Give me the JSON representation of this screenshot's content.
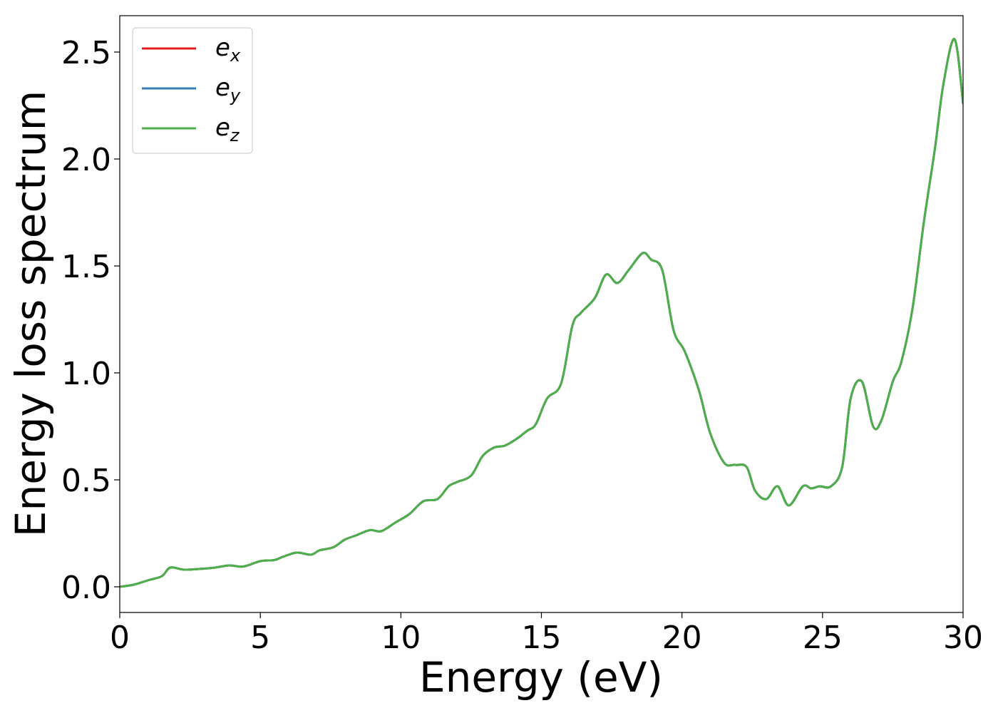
{
  "chart_data": {
    "type": "line",
    "title": "",
    "xlabel": "Energy (eV)",
    "ylabel": "Energy loss spectrum",
    "xlim": [
      0,
      30
    ],
    "ylim": [
      -0.12,
      2.67
    ],
    "xticks": [
      0,
      5,
      10,
      15,
      20,
      25,
      30
    ],
    "xtick_labels": [
      "0",
      "5",
      "10",
      "15",
      "20",
      "25",
      "30"
    ],
    "yticks": [
      0.0,
      0.5,
      1.0,
      1.5,
      2.0,
      2.5
    ],
    "ytick_labels": [
      "0.0",
      "0.5",
      "1.0",
      "1.5",
      "2.0",
      "2.5"
    ],
    "grid": false,
    "legend_position": "upper-left",
    "x": [
      0,
      0.5,
      1.0,
      1.5,
      1.8,
      2.3,
      3.0,
      3.4,
      3.9,
      4.4,
      5.0,
      5.5,
      5.8,
      6.3,
      6.8,
      7.1,
      7.6,
      8.0,
      8.4,
      8.9,
      9.3,
      9.8,
      10.3,
      10.8,
      11.3,
      11.7,
      12.0,
      12.5,
      12.9,
      13.3,
      13.7,
      14.1,
      14.5,
      14.8,
      15.2,
      15.7,
      16.1,
      16.4,
      16.9,
      17.3,
      17.7,
      18.1,
      18.6,
      18.9,
      19.3,
      19.7,
      20.1,
      20.6,
      21.0,
      21.5,
      21.9,
      22.3,
      22.6,
      23.0,
      23.4,
      23.8,
      24.3,
      24.6,
      24.9,
      25.3,
      25.7,
      26.0,
      26.4,
      26.8,
      27.1,
      27.5,
      27.8,
      28.2,
      28.6,
      29.0,
      29.3,
      29.7,
      30.0
    ],
    "series": [
      {
        "name": "e_x",
        "label_base": "e",
        "label_sub": "x",
        "color": "#e41a1c",
        "y": [
          0.0,
          0.01,
          0.03,
          0.05,
          0.09,
          0.08,
          0.085,
          0.09,
          0.1,
          0.095,
          0.12,
          0.125,
          0.14,
          0.16,
          0.15,
          0.17,
          0.185,
          0.22,
          0.24,
          0.265,
          0.26,
          0.3,
          0.34,
          0.4,
          0.41,
          0.47,
          0.49,
          0.52,
          0.61,
          0.65,
          0.66,
          0.69,
          0.73,
          0.76,
          0.88,
          0.95,
          1.22,
          1.28,
          1.35,
          1.46,
          1.42,
          1.48,
          1.56,
          1.53,
          1.48,
          1.2,
          1.1,
          0.92,
          0.72,
          0.58,
          0.57,
          0.56,
          0.45,
          0.41,
          0.47,
          0.38,
          0.47,
          0.46,
          0.47,
          0.47,
          0.56,
          0.88,
          0.96,
          0.75,
          0.78,
          0.96,
          1.05,
          1.3,
          1.7,
          2.05,
          2.35,
          2.56,
          2.26
        ]
      },
      {
        "name": "e_y",
        "label_base": "e",
        "label_sub": "y",
        "color": "#377eb8",
        "y": [
          0.0,
          0.01,
          0.03,
          0.05,
          0.09,
          0.08,
          0.085,
          0.09,
          0.1,
          0.095,
          0.12,
          0.125,
          0.14,
          0.16,
          0.15,
          0.17,
          0.185,
          0.22,
          0.24,
          0.265,
          0.26,
          0.3,
          0.34,
          0.4,
          0.41,
          0.47,
          0.49,
          0.52,
          0.61,
          0.65,
          0.66,
          0.69,
          0.73,
          0.76,
          0.88,
          0.95,
          1.22,
          1.28,
          1.35,
          1.46,
          1.42,
          1.48,
          1.56,
          1.53,
          1.48,
          1.2,
          1.1,
          0.92,
          0.72,
          0.58,
          0.57,
          0.56,
          0.45,
          0.41,
          0.47,
          0.38,
          0.47,
          0.46,
          0.47,
          0.47,
          0.56,
          0.88,
          0.96,
          0.75,
          0.78,
          0.96,
          1.05,
          1.3,
          1.7,
          2.05,
          2.35,
          2.56,
          2.26
        ]
      },
      {
        "name": "e_z",
        "label_base": "e",
        "label_sub": "z",
        "color": "#4daf4a",
        "y": [
          0.0,
          0.01,
          0.03,
          0.05,
          0.09,
          0.08,
          0.085,
          0.09,
          0.1,
          0.095,
          0.12,
          0.125,
          0.14,
          0.16,
          0.15,
          0.17,
          0.185,
          0.22,
          0.24,
          0.265,
          0.26,
          0.3,
          0.34,
          0.4,
          0.41,
          0.47,
          0.49,
          0.52,
          0.61,
          0.65,
          0.66,
          0.69,
          0.73,
          0.76,
          0.88,
          0.95,
          1.22,
          1.28,
          1.35,
          1.46,
          1.42,
          1.48,
          1.56,
          1.53,
          1.48,
          1.2,
          1.1,
          0.92,
          0.72,
          0.58,
          0.57,
          0.56,
          0.45,
          0.41,
          0.47,
          0.38,
          0.47,
          0.46,
          0.47,
          0.47,
          0.56,
          0.88,
          0.96,
          0.75,
          0.78,
          0.96,
          1.05,
          1.3,
          1.7,
          2.05,
          2.35,
          2.56,
          2.26
        ]
      }
    ]
  }
}
